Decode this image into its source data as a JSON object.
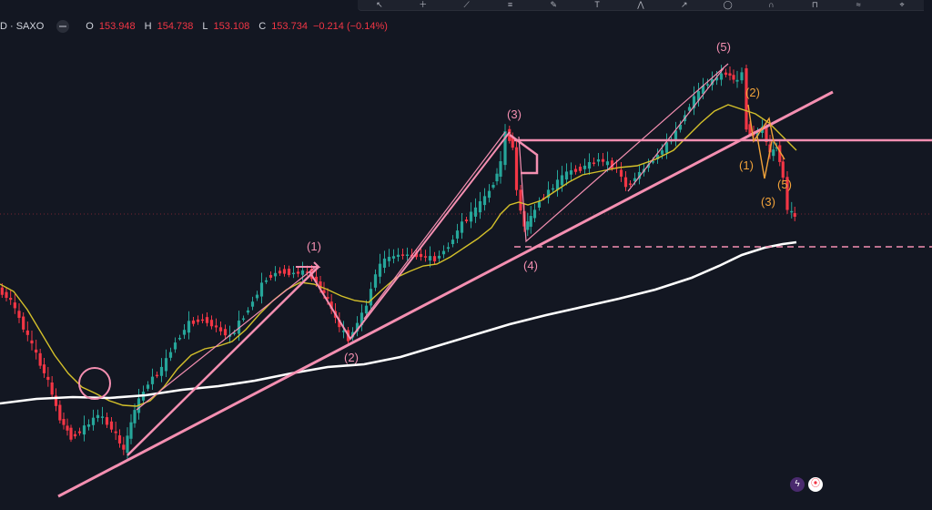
{
  "header": {
    "symbol": "D · SAXO",
    "open_label": "O",
    "open": "153.948",
    "high_label": "H",
    "high": "154.738",
    "low_label": "L",
    "low": "153.108",
    "close_label": "C",
    "close": "153.734",
    "change": "−0.214 (−0.14%)"
  },
  "toolbar": {
    "tools": [
      "cursor-icon",
      "crosshair-icon",
      "trend-line-icon",
      "fib-icon",
      "brush-icon",
      "text-icon",
      "pattern-icon",
      "prediction-icon",
      "ruler-icon",
      "magnet-icon",
      "lock-icon",
      "hide-icon",
      "delete-icon"
    ]
  },
  "wave_labels": {
    "pink": [
      "(1)",
      "(2)",
      "(3)",
      "(4)",
      "(5)"
    ],
    "orange": [
      "(2)",
      "(1)",
      "(3)",
      "(5)"
    ]
  },
  "colors": {
    "background": "#131722",
    "up": "#26a69a",
    "down": "#f23645",
    "drawing_pink": "#f48fb1",
    "ma_yellow": "#d4c02a",
    "ma_white": "#ffffff",
    "orange_labels": "#f2a33a"
  },
  "chart_data": {
    "type": "candlestick",
    "title": "",
    "xlabel": "",
    "ylabel": "",
    "grid": false,
    "last_ohlc": {
      "open": 153.948,
      "high": 154.738,
      "low": 153.108,
      "close": 153.734,
      "change": -0.214,
      "change_pct": -0.14
    },
    "annotations": [
      "(1)",
      "(2)",
      "(3)",
      "(4)",
      "(5)",
      "(2)",
      "(1)",
      "(3)",
      "(5)"
    ]
  }
}
